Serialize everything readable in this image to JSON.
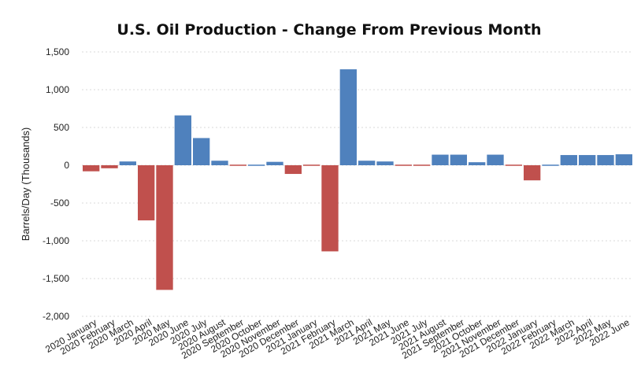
{
  "chart_data": {
    "type": "bar",
    "title": "U.S. Oil Production - Change From Previous Month",
    "xlabel": "",
    "ylabel": "Barrels/Day (Thousands)",
    "ylim": [
      -2000,
      1500
    ],
    "yticks": [
      1500,
      1000,
      500,
      0,
      -500,
      -1000,
      -1500,
      -2000
    ],
    "ytick_labels": [
      "1,500",
      "1,000",
      "500",
      "0",
      "-500",
      "-1,000",
      "-1,500",
      "-2,000"
    ],
    "grid": true,
    "colors": {
      "positive": "#4f81bd",
      "negative": "#c0504d"
    },
    "categories": [
      "2020 January",
      "2020 February",
      "2020 March",
      "2020 April",
      "2020 May",
      "2020 June",
      "2020 July",
      "2020 August",
      "2020 September",
      "2020 October",
      "2020 November",
      "2020 December",
      "2021 January",
      "2021 February",
      "2021 March",
      "2021 April",
      "2021 May",
      "2021 June",
      "2021 July",
      "2021 August",
      "2021 September",
      "2021 October",
      "2021 November",
      "2021 December",
      "2022 January",
      "2022 February",
      "2022 March",
      "2022 April",
      "2022 May",
      "2022 June"
    ],
    "values": [
      -80,
      -40,
      50,
      -730,
      -1650,
      660,
      360,
      60,
      -10,
      10,
      45,
      -115,
      -5,
      -1140,
      1270,
      60,
      50,
      -15,
      -15,
      140,
      140,
      40,
      140,
      -10,
      -200,
      10,
      135,
      135,
      135,
      145
    ]
  }
}
